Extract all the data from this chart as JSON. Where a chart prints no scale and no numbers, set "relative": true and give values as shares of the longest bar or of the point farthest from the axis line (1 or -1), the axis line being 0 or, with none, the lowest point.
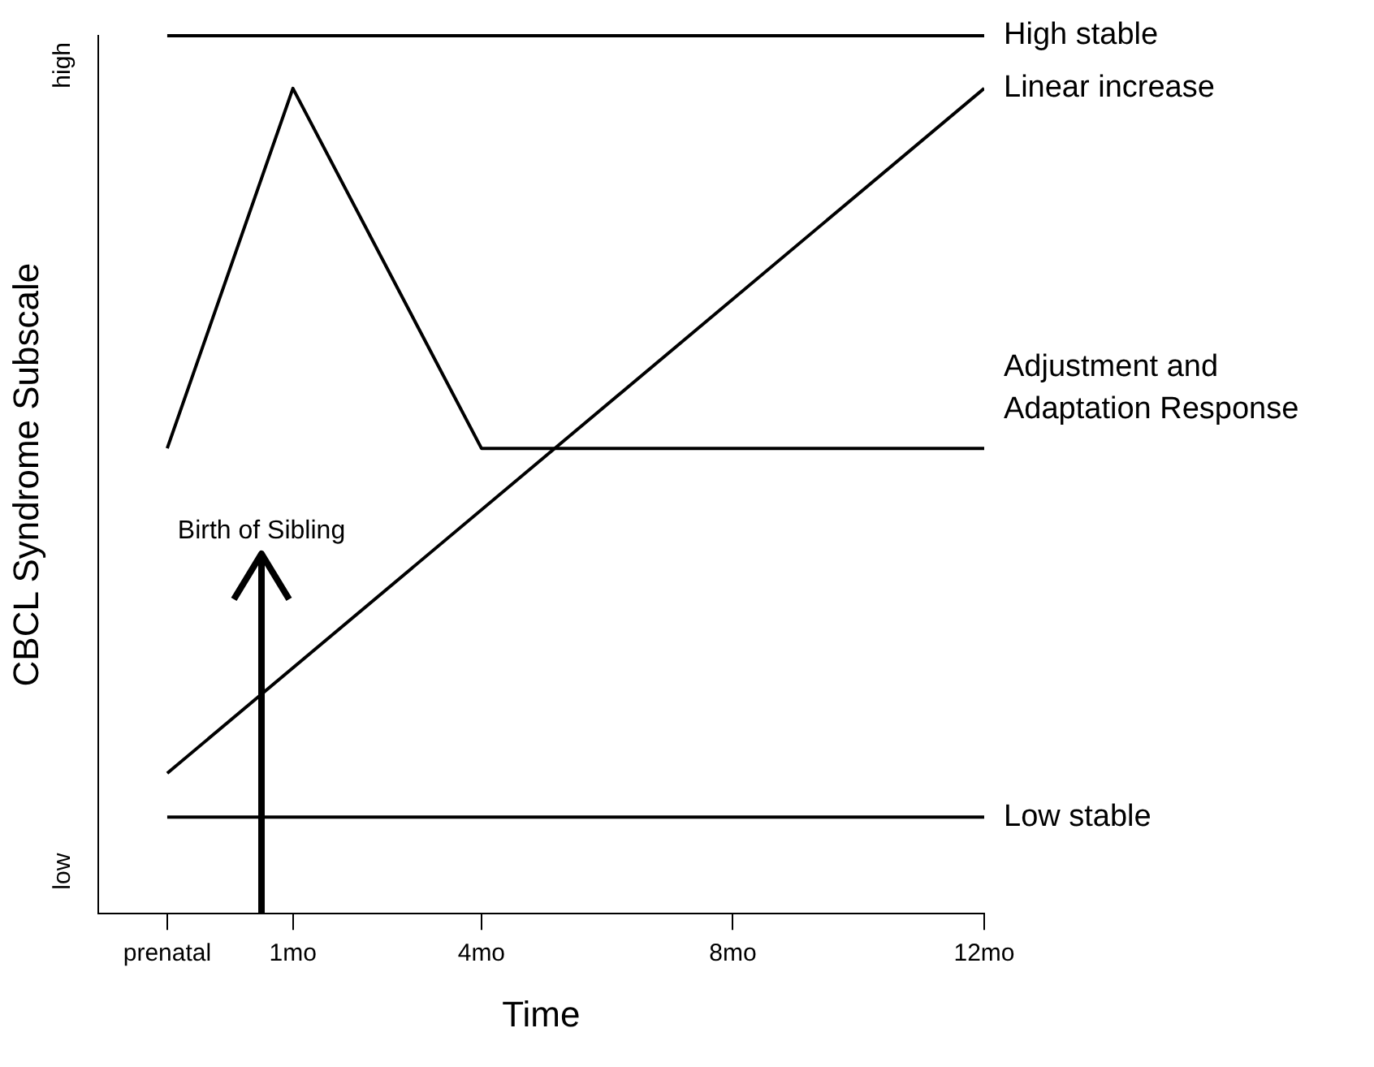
{
  "chart_data": {
    "type": "line",
    "relative": true,
    "xlabel": "Time",
    "ylabel": "CBCL Syndrome Subscale",
    "series": [
      {
        "name": "High stable",
        "color": "#000000",
        "x": [
          -1,
          12
        ],
        "values": [
          1,
          1
        ]
      },
      {
        "name": "Linear increase",
        "color": "#000000",
        "x": [
          -1,
          12
        ],
        "values": [
          0.16,
          0.94
        ]
      },
      {
        "name": "Adjustment and Adaptation Response",
        "color": "#000000",
        "x": [
          -1,
          1,
          4,
          12
        ],
        "values": [
          0.53,
          0.94,
          0.53,
          0.53
        ]
      },
      {
        "name": "Low stable",
        "color": "#000000",
        "x": [
          -1,
          12
        ],
        "values": [
          0.11,
          0.11
        ]
      }
    ],
    "xlim": [
      -2.1,
      12
    ],
    "xticks": [
      {
        "value": -1,
        "label": "prenatal"
      },
      {
        "value": 1,
        "label": "1mo"
      },
      {
        "value": 4,
        "label": "4mo"
      },
      {
        "value": 8,
        "label": "8mo"
      },
      {
        "value": 12,
        "label": "12mo"
      }
    ],
    "annotations": [
      "low",
      "high"
    ],
    "ref_lines": [
      {
        "axis": "x",
        "value": 0.5,
        "label": "Birth of Sibling",
        "color": "#000000",
        "line_style": "solid"
      }
    ],
    "grid": false,
    "legend": false,
    "marker": "none",
    "line_style": "solid"
  }
}
